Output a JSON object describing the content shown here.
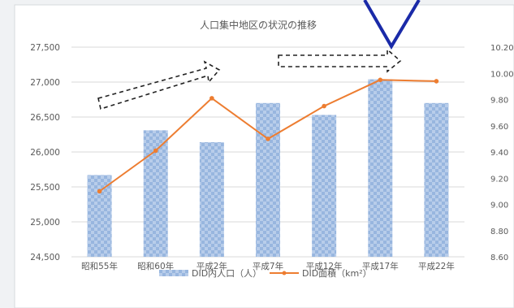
{
  "chart_data": {
    "type": "bar+line",
    "title": "人口集中地区の状況の推移",
    "categories": [
      "昭和55年",
      "昭和60年",
      "平成2年",
      "平成7年",
      "平成12年",
      "平成17年",
      "平成22年"
    ],
    "series": [
      {
        "name": "DID内人口（人）",
        "type": "bar",
        "axis": "left",
        "values": [
          25670,
          26310,
          26140,
          26700,
          26530,
          27040,
          26700
        ]
      },
      {
        "name": "DID面積（km²）",
        "type": "line",
        "axis": "right",
        "values": [
          9.1,
          9.41,
          9.81,
          9.5,
          9.75,
          9.95,
          9.94
        ]
      }
    ],
    "y_left": {
      "min": 24500,
      "max": 27500,
      "step": 500,
      "ticks": [
        "24,500",
        "25,000",
        "25,500",
        "26,000",
        "26,500",
        "27,000",
        "27,500"
      ]
    },
    "y_right": {
      "min": 8.6,
      "max": 10.2,
      "step": 0.2,
      "ticks": [
        "8.60",
        "8.80",
        "9.00",
        "9.20",
        "9.40",
        "9.60",
        "9.80",
        "10.00",
        "10.20"
      ]
    },
    "legend_position": "bottom",
    "grid": "horizontal",
    "colors": {
      "bar": "#a9c3e6",
      "bar_pattern": "#8fb0dc",
      "line": "#ed7d31",
      "annotation": "#1a2aa8"
    }
  }
}
